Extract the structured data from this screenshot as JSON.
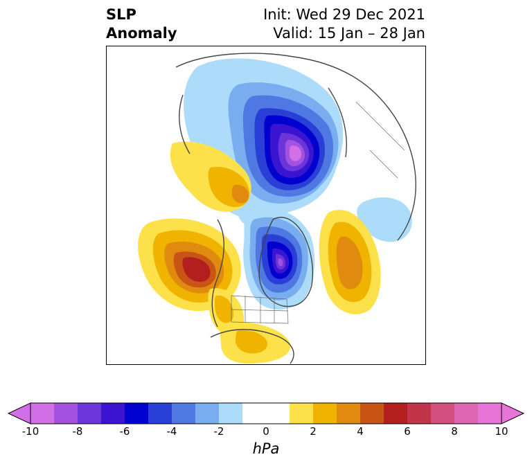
{
  "title": {
    "line1": "SLP",
    "line2": "Anomaly"
  },
  "init": {
    "line1": "Init: Wed 29 Dec 2021",
    "line2": "Valid: 15 Jan – 28 Jan"
  },
  "colorbar": {
    "unit": "hPa",
    "ticks": [
      "-10",
      "-8",
      "-6",
      "-4",
      "-2",
      "0",
      "2",
      "4",
      "6",
      "8",
      "10"
    ],
    "levels": [
      -10,
      -9,
      -8,
      -7,
      -6,
      -5,
      -4,
      -3,
      -2,
      -1,
      1,
      2,
      3,
      4,
      5,
      6,
      7,
      8,
      9,
      10
    ],
    "colors": [
      "#d16fe6",
      "#a352e0",
      "#6b35d9",
      "#3a14d1",
      "#0000cf",
      "#2a3fd6",
      "#4f78e3",
      "#79adef",
      "#acdcf9",
      "#ffffff",
      "#ffffff",
      "#fde14a",
      "#f0b400",
      "#e08a10",
      "#c85515",
      "#b31f1f",
      "#c2344a",
      "#d34f7e",
      "#dd65b1",
      "#e874d8"
    ],
    "extend_low_color": "#d16fe6",
    "extend_high_color": "#e874d8"
  },
  "anomaly_features": [
    {
      "name": "negative-siberia",
      "peak": -10
    },
    {
      "name": "negative-hudson-bay",
      "peak": -9
    },
    {
      "name": "positive-north-pacific",
      "peak": 6
    },
    {
      "name": "positive-north-atlantic",
      "peak": 4
    },
    {
      "name": "positive-north-america-west",
      "peak": 3
    },
    {
      "name": "positive-southeast-us",
      "peak": 2
    }
  ]
}
